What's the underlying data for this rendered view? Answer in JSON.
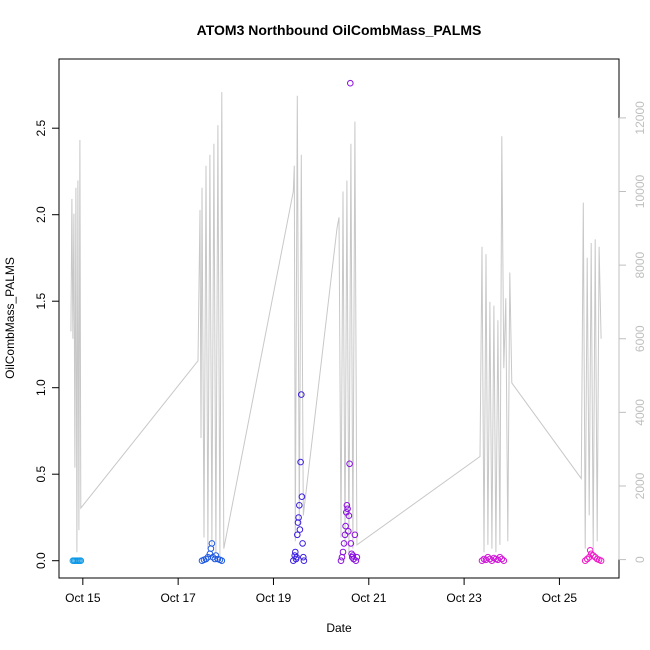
{
  "chart_data": {
    "type": "scatter",
    "title": "ATOM3 Northbound OilCombMass_PALMS",
    "xlabel": "Date",
    "ylabel": "OilCombMass_PALMS",
    "x_axis": {
      "type": "date",
      "range": [
        "2016-10-14T12:00",
        "2016-10-26T06:00"
      ],
      "ticks": [
        "Oct 15",
        "Oct 17",
        "Oct 19",
        "Oct 21",
        "Oct 23",
        "Oct 25"
      ],
      "tick_dates": [
        "2016-10-15",
        "2016-10-17",
        "2016-10-19",
        "2016-10-21",
        "2016-10-23",
        "2016-10-25"
      ]
    },
    "y_axis": {
      "range": [
        -0.1,
        2.9
      ],
      "ticks": [
        "0.0",
        "0.5",
        "1.0",
        "1.5",
        "2.0",
        "2.5"
      ],
      "tick_values": [
        0,
        0.5,
        1.0,
        1.5,
        2.0,
        2.5
      ]
    },
    "y2_axis": {
      "range": [
        -500,
        13600
      ],
      "ticks": [
        "0",
        "2000",
        "4000",
        "6000",
        "8000",
        "10000",
        "12000"
      ],
      "tick_values": [
        0,
        2000,
        4000,
        6000,
        8000,
        10000,
        12000
      ],
      "color": "#bfbfbf"
    },
    "grid": false,
    "series": [
      {
        "color": "#0f99e6",
        "points": [
          [
            "2016-10-14T19:00",
            0
          ],
          [
            "2016-10-14T19:40",
            0
          ],
          [
            "2016-10-14T20:20",
            0
          ],
          [
            "2016-10-14T21:00",
            0
          ],
          [
            "2016-10-14T21:40",
            0
          ],
          [
            "2016-10-14T22:20",
            0
          ],
          [
            "2016-10-14T23:00",
            0
          ]
        ]
      },
      {
        "color": "#1f5ae0",
        "points": [
          [
            "2016-10-17T12:00",
            0
          ],
          [
            "2016-10-17T13:00",
            0.005
          ],
          [
            "2016-10-17T14:00",
            0.01
          ],
          [
            "2016-10-17T15:00",
            0.02
          ],
          [
            "2016-10-17T16:00",
            0.04
          ],
          [
            "2016-10-17T16:30",
            0.07
          ],
          [
            "2016-10-17T17:00",
            0.1
          ],
          [
            "2016-10-17T17:30",
            0.02
          ],
          [
            "2016-10-17T18:30",
            0.01
          ],
          [
            "2016-10-17T19:00",
            0.03
          ],
          [
            "2016-10-17T20:00",
            0.01
          ],
          [
            "2016-10-17T21:00",
            0.005
          ],
          [
            "2016-10-17T22:00",
            0
          ]
        ]
      },
      {
        "color": "#3a1fe0",
        "points": [
          [
            "2016-10-19T10:00",
            0
          ],
          [
            "2016-10-19T10:40",
            0.03
          ],
          [
            "2016-10-19T11:00",
            0.05
          ],
          [
            "2016-10-19T11:20",
            0.01
          ],
          [
            "2016-10-19T11:40",
            0.02
          ],
          [
            "2016-10-19T12:00",
            0.15
          ],
          [
            "2016-10-19T12:20",
            0.22
          ],
          [
            "2016-10-19T12:40",
            0.25
          ],
          [
            "2016-10-19T13:00",
            0.32
          ],
          [
            "2016-10-19T13:20",
            0.18
          ],
          [
            "2016-10-19T13:40",
            0.57
          ],
          [
            "2016-10-19T14:00",
            0.96
          ],
          [
            "2016-10-19T14:20",
            0.37
          ],
          [
            "2016-10-19T14:40",
            0.1
          ],
          [
            "2016-10-19T15:00",
            0.02
          ],
          [
            "2016-10-19T15:20",
            0
          ]
        ]
      },
      {
        "color": "#8a10e0",
        "points": [
          [
            "2016-10-20T10:00",
            0
          ],
          [
            "2016-10-20T10:30",
            0.02
          ],
          [
            "2016-10-20T11:00",
            0.05
          ],
          [
            "2016-10-20T11:30",
            0.1
          ],
          [
            "2016-10-20T12:00",
            0.15
          ],
          [
            "2016-10-20T12:20",
            0.2
          ],
          [
            "2016-10-20T12:40",
            0.28
          ],
          [
            "2016-10-20T13:00",
            0.32
          ],
          [
            "2016-10-20T13:20",
            0.3
          ],
          [
            "2016-10-20T13:40",
            0.17
          ],
          [
            "2016-10-20T14:00",
            0.26
          ],
          [
            "2016-10-20T14:20",
            0.56
          ],
          [
            "2016-10-20T14:40",
            2.76
          ],
          [
            "2016-10-20T15:00",
            0.1
          ],
          [
            "2016-10-20T15:20",
            0.04
          ],
          [
            "2016-10-20T15:40",
            0.02
          ],
          [
            "2016-10-20T16:00",
            0.03
          ],
          [
            "2016-10-20T16:20",
            0.01
          ],
          [
            "2016-10-20T17:00",
            0.15
          ],
          [
            "2016-10-20T17:30",
            0
          ],
          [
            "2016-10-20T18:00",
            0.02
          ]
        ]
      },
      {
        "color": "#d016d8",
        "points": [
          [
            "2016-10-23T09:00",
            0
          ],
          [
            "2016-10-23T10:00",
            0.01
          ],
          [
            "2016-10-23T11:00",
            0.005
          ],
          [
            "2016-10-23T12:00",
            0.02
          ],
          [
            "2016-10-23T13:00",
            0.01
          ],
          [
            "2016-10-23T14:00",
            0
          ],
          [
            "2016-10-23T15:00",
            0.015
          ],
          [
            "2016-10-23T16:00",
            0.01
          ],
          [
            "2016-10-23T17:00",
            0.005
          ],
          [
            "2016-10-23T18:00",
            0.02
          ],
          [
            "2016-10-23T19:00",
            0.01
          ],
          [
            "2016-10-23T20:00",
            0
          ]
        ]
      },
      {
        "color": "#f01ac8",
        "points": [
          [
            "2016-10-25T13:00",
            0
          ],
          [
            "2016-10-25T14:00",
            0.01
          ],
          [
            "2016-10-25T15:00",
            0.02
          ],
          [
            "2016-10-25T15:30",
            0.06
          ],
          [
            "2016-10-25T16:00",
            0.04
          ],
          [
            "2016-10-25T17:00",
            0.03
          ],
          [
            "2016-10-25T18:00",
            0.02
          ],
          [
            "2016-10-25T19:00",
            0.01
          ],
          [
            "2016-10-25T20:00",
            0.005
          ],
          [
            "2016-10-25T21:00",
            0
          ]
        ]
      }
    ],
    "secondary_line": {
      "color": "#c8c8c8",
      "axis": "y2",
      "points": [
        [
          "2016-10-14T18:00",
          6200
        ],
        [
          "2016-10-14T18:30",
          9800
        ],
        [
          "2016-10-14T19:00",
          6000
        ],
        [
          "2016-10-14T19:30",
          9400
        ],
        [
          "2016-10-14T20:00",
          2500
        ],
        [
          "2016-10-14T20:30",
          10100
        ],
        [
          "2016-10-14T21:00",
          200
        ],
        [
          "2016-10-14T21:30",
          10300
        ],
        [
          "2016-10-14T22:00",
          800
        ],
        [
          "2016-10-14T22:30",
          11400
        ],
        [
          "2016-10-14T23:00",
          1400
        ],
        [
          "2016-10-17T10:00",
          5400
        ],
        [
          "2016-10-17T11:00",
          9500
        ],
        [
          "2016-10-17T11:30",
          3300
        ],
        [
          "2016-10-17T12:00",
          10100
        ],
        [
          "2016-10-17T13:00",
          600
        ],
        [
          "2016-10-17T14:00",
          10700
        ],
        [
          "2016-10-17T15:00",
          300
        ],
        [
          "2016-10-17T16:00",
          11000
        ],
        [
          "2016-10-17T17:00",
          400
        ],
        [
          "2016-10-17T18:00",
          11300
        ],
        [
          "2016-10-17T19:00",
          200
        ],
        [
          "2016-10-17T20:00",
          11800
        ],
        [
          "2016-10-17T21:00",
          100
        ],
        [
          "2016-10-17T22:00",
          12700
        ],
        [
          "2016-10-17T23:00",
          300
        ],
        [
          "2016-10-19T10:00",
          10000
        ],
        [
          "2016-10-19T10:30",
          10700
        ],
        [
          "2016-10-19T11:00",
          500
        ],
        [
          "2016-10-19T12:00",
          12600
        ],
        [
          "2016-10-19T13:00",
          900
        ],
        [
          "2016-10-19T14:00",
          11000
        ],
        [
          "2016-10-19T15:00",
          1200
        ],
        [
          "2016-10-20T08:00",
          9000
        ],
        [
          "2016-10-20T09:00",
          9300
        ],
        [
          "2016-10-20T10:00",
          600
        ],
        [
          "2016-10-20T11:00",
          10000
        ],
        [
          "2016-10-20T12:00",
          400
        ],
        [
          "2016-10-20T13:00",
          10300
        ],
        [
          "2016-10-20T14:00",
          200
        ],
        [
          "2016-10-20T15:00",
          11300
        ],
        [
          "2016-10-20T16:00",
          300
        ],
        [
          "2016-10-20T17:00",
          11900
        ],
        [
          "2016-10-20T18:00",
          400
        ],
        [
          "2016-10-23T08:00",
          2800
        ],
        [
          "2016-10-23T09:00",
          8500
        ],
        [
          "2016-10-23T10:00",
          200
        ],
        [
          "2016-10-23T11:00",
          8300
        ],
        [
          "2016-10-23T12:00",
          400
        ],
        [
          "2016-10-23T13:00",
          7000
        ],
        [
          "2016-10-23T14:00",
          300
        ],
        [
          "2016-10-23T15:00",
          6900
        ],
        [
          "2016-10-23T16:00",
          200
        ],
        [
          "2016-10-23T17:00",
          6500
        ],
        [
          "2016-10-23T18:00",
          400
        ],
        [
          "2016-10-23T19:00",
          11500
        ],
        [
          "2016-10-23T20:00",
          5200
        ],
        [
          "2016-10-23T21:00",
          7100
        ],
        [
          "2016-10-23T22:00",
          500
        ],
        [
          "2016-10-23T23:00",
          7800
        ],
        [
          "2016-10-24T00:00",
          4800
        ],
        [
          "2016-10-25T11:00",
          2200
        ],
        [
          "2016-10-25T12:00",
          9700
        ],
        [
          "2016-10-25T13:00",
          300
        ],
        [
          "2016-10-25T14:00",
          8200
        ],
        [
          "2016-10-25T15:00",
          1200
        ],
        [
          "2016-10-25T16:00",
          8600
        ],
        [
          "2016-10-25T17:00",
          300
        ],
        [
          "2016-10-25T18:00",
          8700
        ],
        [
          "2016-10-25T19:00",
          500
        ],
        [
          "2016-10-25T20:00",
          8500
        ],
        [
          "2016-10-25T21:00",
          6000
        ]
      ]
    }
  }
}
